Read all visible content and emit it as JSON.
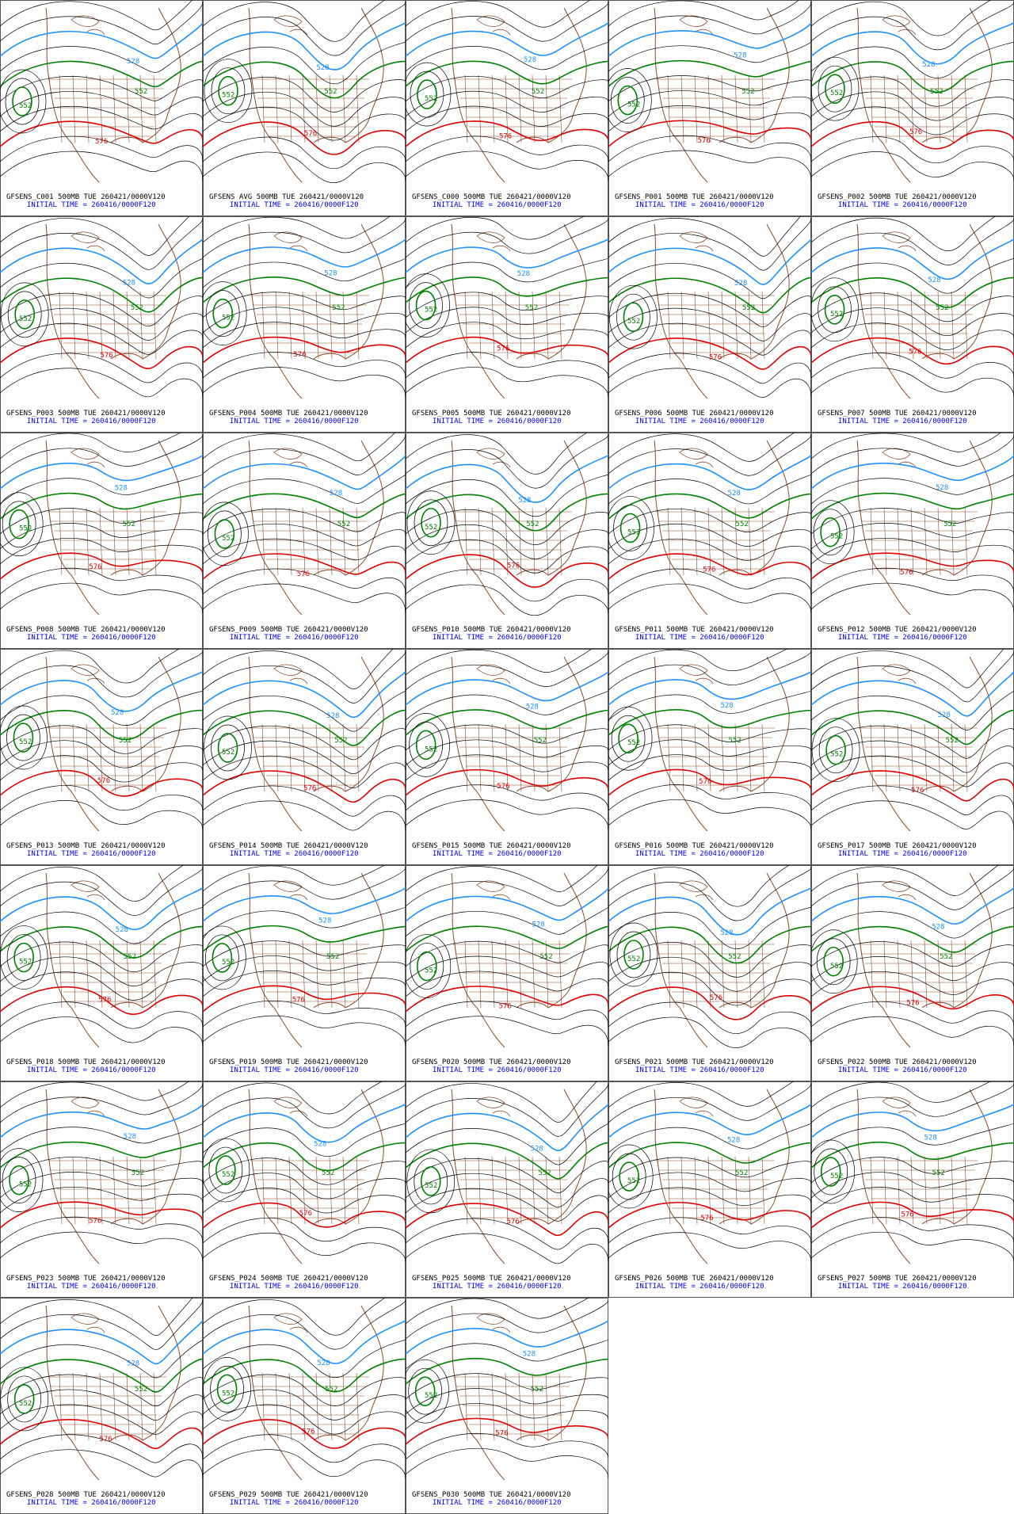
{
  "panels": [
    {
      "title": "GFSENS_C001 500MB TUE 260421/0000V120",
      "init": "INITIAL TIME = 260416/0000F120",
      "labels": [
        "552",
        "528",
        "552",
        "576"
      ]
    },
    {
      "title": "GFSENS AVG 500MB TUE 260421/0000V120",
      "init": "INITIAL TIME = 260416/0000F120",
      "labels": [
        "552",
        "528",
        "552",
        "576"
      ]
    },
    {
      "title": "GFSENS_C000 500MB TUE 260421/0000V120",
      "init": "INITIAL TIME = 260416/0000F120",
      "labels": [
        "552",
        "528",
        "552",
        "576"
      ]
    },
    {
      "title": "GFSENS_P001 500MB TUE 260421/0000V120",
      "init": "INITIAL TIME = 260416/0000F120",
      "labels": [
        "552",
        "528",
        "552",
        "576"
      ]
    },
    {
      "title": "GFSENS_P002 500MB TUE 260421/0000V120",
      "init": "INITIAL TIME = 260416/0000F120",
      "labels": [
        "552",
        "528",
        "552",
        "576"
      ]
    },
    {
      "title": "GFSENS_P003 500MB TUE 260421/0000V120",
      "init": "INITIAL TIME = 260416/0000F120",
      "labels": [
        "552",
        "528",
        "552",
        "576"
      ]
    },
    {
      "title": "GFSENS_P004 500MB TUE 260421/0000V120",
      "init": "INITIAL TIME = 260416/0000F120",
      "labels": [
        "552",
        "528",
        "552",
        "576"
      ]
    },
    {
      "title": "GFSENS_P005 500MB TUE 260421/0000V120",
      "init": "INITIAL TIME = 260416/0000F120",
      "labels": [
        "552",
        "528",
        "552",
        "576"
      ]
    },
    {
      "title": "GFSENS_P006 500MB TUE 260421/0000V120",
      "init": "INITIAL TIME = 260416/0000F120",
      "labels": [
        "552",
        "528",
        "552",
        "576"
      ]
    },
    {
      "title": "GFSENS_P007 500MB TUE 260421/0000V120",
      "init": "INITIAL TIME = 260416/0000F120",
      "labels": [
        "552",
        "528",
        "552",
        "576"
      ]
    },
    {
      "title": "GFSENS_P008 500MB TUE 260421/0000V120",
      "init": "INITIAL TIME = 260416/0000F120",
      "labels": [
        "552",
        "528",
        "552",
        "576"
      ]
    },
    {
      "title": "GFSENS_P009 500MB TUE 260421/0000V120",
      "init": "INITIAL TIME = 260416/0000F120",
      "labels": [
        "552",
        "528",
        "552",
        "576"
      ]
    },
    {
      "title": "GFSENS_P010 500MB TUE 260421/0000V120",
      "init": "INITIAL TIME = 260416/0000F120",
      "labels": [
        "552",
        "528",
        "552",
        "576"
      ]
    },
    {
      "title": "GFSENS_P011 500MB TUE 260421/0000V120",
      "init": "INITIAL TIME = 260416/0000F120",
      "labels": [
        "552",
        "528",
        "552",
        "576"
      ]
    },
    {
      "title": "GFSENS_P012 500MB TUE 260421/0000V120",
      "init": "INITIAL TIME = 260416/0000F120",
      "labels": [
        "552",
        "528",
        "552",
        "576"
      ]
    },
    {
      "title": "GFSENS_P013 500MB TUE 260421/0000V120",
      "init": "INITIAL TIME = 260416/0000F120",
      "labels": [
        "552",
        "528",
        "552",
        "576"
      ]
    },
    {
      "title": "GFSENS_P014 500MB TUE 260421/0000V120",
      "init": "INITIAL TIME = 260416/0000F120",
      "labels": [
        "552",
        "528",
        "552",
        "576"
      ]
    },
    {
      "title": "GFSENS_P015 500MB TUE 260421/0000V120",
      "init": "INITIAL TIME = 260416/0000F120",
      "labels": [
        "552",
        "528",
        "552",
        "576"
      ]
    },
    {
      "title": "GFSENS_P016 500MB TUE 260421/0000V120",
      "init": "INITIAL TIME = 260416/0000F120",
      "labels": [
        "552",
        "528",
        "552",
        "576"
      ]
    },
    {
      "title": "GFSENS_P017 500MB TUE 260421/0000V120",
      "init": "INITIAL TIME = 260416/0000F120",
      "labels": [
        "552",
        "528",
        "552",
        "576"
      ]
    },
    {
      "title": "GFSENS_P018 500MB TUE 260421/0000V120",
      "init": "INITIAL TIME = 260416/0000F120",
      "labels": [
        "552",
        "528",
        "552",
        "576"
      ]
    },
    {
      "title": "GFSENS_P019 500MB TUE 260421/0000V120",
      "init": "INITIAL TIME = 260416/0000F120",
      "labels": [
        "552",
        "528",
        "552",
        "576"
      ]
    },
    {
      "title": "GFSENS_P020 500MB TUE 260421/0000V120",
      "init": "INITIAL TIME = 260416/0000F120",
      "labels": [
        "552",
        "528",
        "552",
        "576"
      ]
    },
    {
      "title": "GFSENS_P021 500MB TUE 260421/0000V120",
      "init": "INITIAL TIME = 260416/0000F120",
      "labels": [
        "552",
        "528",
        "552",
        "576"
      ]
    },
    {
      "title": "GFSENS_P022 500MB TUE 260421/0000V120",
      "init": "INITIAL TIME = 260416/0000F120",
      "labels": [
        "552",
        "528",
        "552",
        "576"
      ]
    },
    {
      "title": "GFSENS_P023 500MB TUE 260421/0000V120",
      "init": "INITIAL TIME = 260416/0000F120",
      "labels": [
        "552",
        "528",
        "552",
        "576"
      ]
    },
    {
      "title": "GFSENS_P024 500MB TUE 260421/0000V120",
      "init": "INITIAL TIME = 260416/0000F120",
      "labels": [
        "552",
        "528",
        "552",
        "576"
      ]
    },
    {
      "title": "GFSENS_P025 500MB TUE 260421/0000V120",
      "init": "INITIAL TIME = 260416/0000F120",
      "labels": [
        "552",
        "528",
        "552",
        "576"
      ]
    },
    {
      "title": "GFSENS_P026 500MB TUE 260421/0000V120",
      "init": "INITIAL TIME = 260416/0000F120",
      "labels": [
        "552",
        "528",
        "552",
        "576"
      ]
    },
    {
      "title": "GFSENS_P027 500MB TUE 260421/0000V120",
      "init": "INITIAL TIME = 260416/0000F120",
      "labels": [
        "552",
        "528",
        "552",
        "576"
      ]
    },
    {
      "title": "GFSENS_P028 500MB TUE 260421/0000V120",
      "init": "INITIAL TIME = 260416/0000F120",
      "labels": [
        "552",
        "528",
        "552",
        "576"
      ]
    },
    {
      "title": "GFSENS_P029 500MB TUE 260421/0000V120",
      "init": "INITIAL TIME = 260416/0000F120",
      "labels": [
        "552",
        "528",
        "552",
        "576"
      ]
    },
    {
      "title": "GFSENS_P030 500MB TUE 260421/0000V120",
      "init": "INITIAL TIME = 260416/0000F120",
      "labels": [
        "552",
        "528",
        "552",
        "576"
      ]
    }
  ]
}
